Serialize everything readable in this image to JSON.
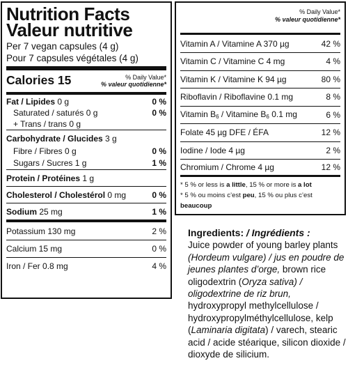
{
  "left": {
    "title_en": "Nutrition Facts",
    "title_fr": "Valeur nutritive",
    "serving_en": "Per 7 vegan capsules (4 g)",
    "serving_fr": "Pour 7 capsules végétales (4 g)",
    "calories_label": "Calories 15",
    "dv_en": "% Daily Value*",
    "dv_fr": "% valeur quotidienne*",
    "fat_label": "Fat / Lipides",
    "fat_amount": "0 g",
    "fat_dv": "0 %",
    "sat_label": "Saturated / saturés",
    "sat_amount": "0 g",
    "sat_dv": "0 %",
    "trans_label": "+ Trans / trans",
    "trans_amount": "0 g",
    "carb_label": "Carbohydrate / Glucides",
    "carb_amount": "3 g",
    "fibre_label": "Fibre / Fibres",
    "fibre_amount": "0 g",
    "fibre_dv": "0 %",
    "sugars_label": "Sugars / Sucres",
    "sugars_amount": "1 g",
    "sugars_dv": "1 %",
    "protein_label": "Protein / Protéines",
    "protein_amount": "1 g",
    "chol_label": "Cholesterol / Cholestérol",
    "chol_amount": "0 mg",
    "chol_dv": "0 %",
    "sodium_label": "Sodium",
    "sodium_amount": "25 mg",
    "sodium_dv": "1 %",
    "potassium": "Potassium 130 mg",
    "potassium_dv": "2 %",
    "calcium": "Calcium 15 mg",
    "calcium_dv": "0 %",
    "iron": "Iron / Fer 0.8 mg",
    "iron_dv": "4 %"
  },
  "right": {
    "dv_en": "% Daily Value*",
    "dv_fr": "% valeur quotidienne*",
    "rows": [
      {
        "label": "Vitamin A / Vitamine A 370 µg",
        "dv": "42 %"
      },
      {
        "label": "Vitamin C / Vitamine C 4 mg",
        "dv": "4 %"
      },
      {
        "label": "Vitamin K / Vitamine K 94 µg",
        "dv": "80 %"
      },
      {
        "label": "Riboflavin / Riboflavine 0.1 mg",
        "dv": "8 %"
      }
    ],
    "b6_dv": "6 %",
    "rows2": [
      {
        "label": "Folate 45 µg DFE / ÉFA",
        "dv": "12 %"
      },
      {
        "label": "Iodine / Iode 4 µg",
        "dv": "2 %"
      },
      {
        "label": "Chromium / Chrome 4 µg",
        "dv": "12 %"
      }
    ],
    "foot_en_a": "* 5 % or less is ",
    "foot_en_b": "a little",
    "foot_en_c": ", 15 % or more is ",
    "foot_en_d": "a lot",
    "foot_fr_a": "* 5 % ou moins c’est ",
    "foot_fr_b": "peu",
    "foot_fr_c": ", 15 % ou plus c’est ",
    "foot_fr_d": "beaucoup"
  },
  "ingredients": {
    "heading_en": "Ingredients:",
    "heading_fr": "/ Ingrédients :",
    "t1": "Juice powder of young barley plants",
    "t2": "(Hordeum vulgare) / jus en poudre de jeunes plantes d’orge,",
    "t3": "brown rice oligodextrin (",
    "t4": "Oryza sativa",
    "t5": ") / oligodextrine de riz brun,",
    "t6": "hydroxypropyl methylcellulose / hydroxypropylméthylcellulose,",
    "t7": "kelp (",
    "t8": "Laminaria digitata",
    "t9": ") / varech,",
    "t10": "stearic acid / acide stéarique,",
    "t11": "silicon dioxide / dioxyde de silicium."
  }
}
